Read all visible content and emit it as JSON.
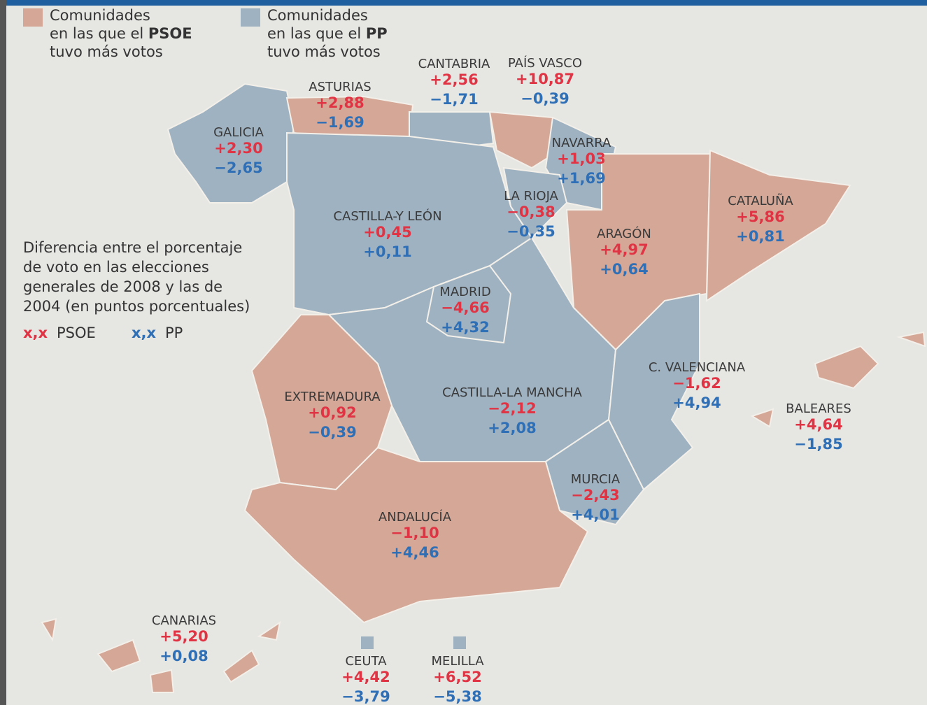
{
  "legend": [
    {
      "color": "#d4a797",
      "line1": "Comunidades",
      "line2": "en las que el",
      "party": "PSOE",
      "line3": "tuvo más votos"
    },
    {
      "color": "#9fb2c2",
      "line1": "Comunidades",
      "line2": "en las que el",
      "party": "PP",
      "line3": "tuvo más votos"
    }
  ],
  "note": {
    "lines": [
      "Diferencia entre el porcentaje",
      "de voto en las elecciones",
      "generales de 2008 y las de",
      "2004 (en puntos porcentuales)"
    ],
    "key": [
      {
        "sample": "x,x",
        "party": "PSOE",
        "color": "#e03444"
      },
      {
        "sample": "x,x",
        "party": "PP",
        "color": "#2f6fb6"
      }
    ]
  },
  "regions": [
    {
      "name": "GALICIA",
      "psoe": "+2,30",
      "pp": "−2,65"
    },
    {
      "name": "ASTURIAS",
      "psoe": "+2,88",
      "pp": "−1,69"
    },
    {
      "name": "CANTABRIA",
      "psoe": "+2,56",
      "pp": "−1,71"
    },
    {
      "name": "PAÍS VASCO",
      "psoe": "+10,87",
      "pp": "−0,39"
    },
    {
      "name": "NAVARRA",
      "psoe": "+1,03",
      "pp": "+1,69"
    },
    {
      "name": "LA RIOJA",
      "psoe": "−0,38",
      "pp": "−0,35"
    },
    {
      "name": "CASTILLA-Y LEÓN",
      "psoe": "+0,45",
      "pp": "+0,11"
    },
    {
      "name": "ARAGÓN",
      "psoe": "+4,97",
      "pp": "+0,64"
    },
    {
      "name": "CATALUÑA",
      "psoe": "+5,86",
      "pp": "+0,81"
    },
    {
      "name": "MADRID",
      "psoe": "−4,66",
      "pp": "+4,32"
    },
    {
      "name": "C. VALENCIANA",
      "psoe": "−1,62",
      "pp": "+4,94"
    },
    {
      "name": "EXTREMADURA",
      "psoe": "+0,92",
      "pp": "−0,39"
    },
    {
      "name": "CASTILLA-LA MANCHA",
      "psoe": "−2,12",
      "pp": "+2,08"
    },
    {
      "name": "BALEARES",
      "psoe": "+4,64",
      "pp": "−1,85"
    },
    {
      "name": "MURCIA",
      "psoe": "−2,43",
      "pp": "+4,01"
    },
    {
      "name": "ANDALUCÍA",
      "psoe": "−1,10",
      "pp": "+4,46"
    },
    {
      "name": "CANARIAS",
      "psoe": "+5,20",
      "pp": "+0,08"
    },
    {
      "name": "CEUTA",
      "psoe": "+4,42",
      "pp": "−3,79"
    },
    {
      "name": "MELILLA",
      "psoe": "+6,52",
      "pp": "−5,38"
    }
  ]
}
